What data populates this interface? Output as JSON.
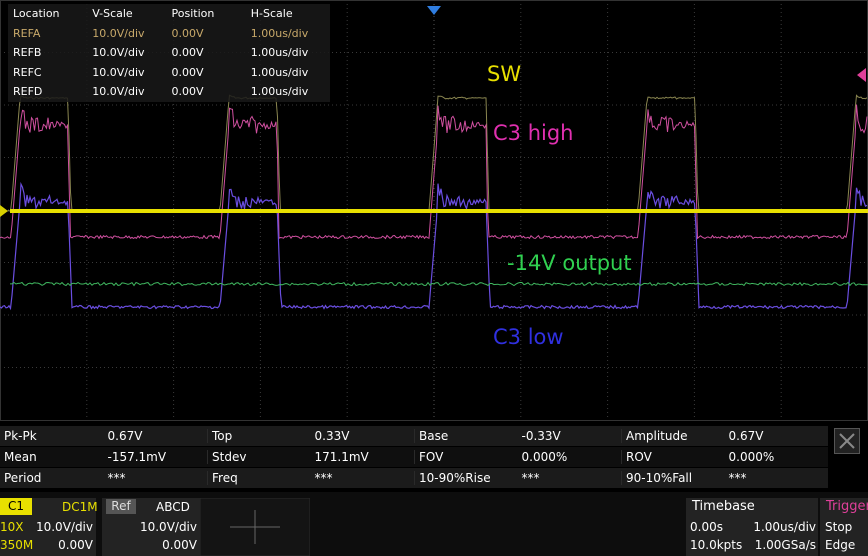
{
  "ref_table": {
    "header": [
      "Location",
      "V-Scale",
      "Position",
      "H-Scale"
    ],
    "rows": [
      [
        "REFA",
        "10.0V/div",
        "0.00V",
        "1.00us/div"
      ],
      [
        "REFB",
        "10.0V/div",
        "0.00V",
        "1.00us/div"
      ],
      [
        "REFC",
        "10.0V/div",
        "0.00V",
        "1.00us/div"
      ],
      [
        "REFD",
        "10.0V/div",
        "0.00V",
        "1.00us/div"
      ]
    ]
  },
  "trace_labels": [
    "SW",
    "C3 high",
    "-14V output",
    "C3 low"
  ],
  "measurements": [
    [
      "Pk-Pk",
      "0.67V",
      "Top",
      "0.33V",
      "Base",
      "-0.33V",
      "Amplitude",
      "0.67V"
    ],
    [
      "Mean",
      "-157.1mV",
      "Stdev",
      "171.1mV",
      "FOV",
      "0.000%",
      "ROV",
      "0.000%"
    ],
    [
      "Period",
      "***",
      "Freq",
      "***",
      "10-90%Rise",
      "***",
      "90-10%Fall",
      "***"
    ]
  ],
  "channel": {
    "name": "C1",
    "coupling": "DC1M",
    "probe": "10X",
    "scale": "10.0V/div",
    "bandwidth": "350M",
    "offset": "0.00V"
  },
  "ref": {
    "name": "Ref",
    "channels": "ABCD",
    "scale": "10.0V/div",
    "offset": "0.00V"
  },
  "timebase": {
    "title": "Timebase",
    "delay": "0.00s",
    "scale": "1.00us/div",
    "points": "10.0kpts",
    "rate": "1.00GSa/s"
  },
  "trigger": {
    "title": "Trigger",
    "state": "Stop",
    "type": "Edge"
  }
}
